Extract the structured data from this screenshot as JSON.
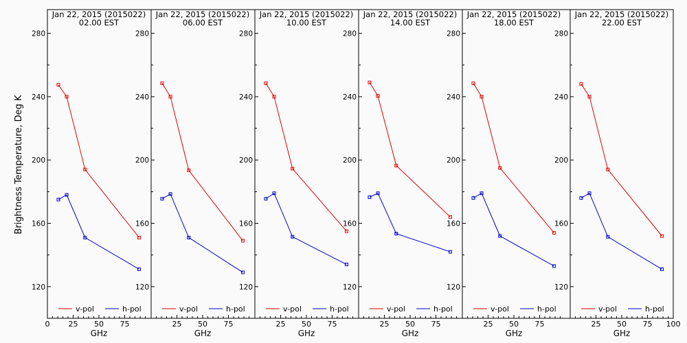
{
  "ylabel": "Brightness Temperature, Deg K",
  "xlabel": "GHz",
  "chart_data": [
    {
      "type": "line",
      "title": "Jan 22, 2015 (2015022)",
      "subtitle": "02.00 EST",
      "x": [
        10.65,
        18.7,
        36.5,
        89.0
      ],
      "series": [
        {
          "name": "v-pol",
          "color": "#e00000",
          "values": [
            247.5,
            240.0,
            194.0,
            151.0
          ]
        },
        {
          "name": "h-pol",
          "color": "#0000cc",
          "values": [
            175.0,
            178.0,
            151.0,
            131.0
          ]
        }
      ],
      "xlim": [
        0,
        100
      ],
      "ylim": [
        100,
        295
      ],
      "xticks": [
        0,
        25,
        50,
        75
      ],
      "xtick_labels": [
        "0",
        "25",
        "50",
        "75"
      ],
      "yticks": [
        120,
        160,
        200,
        240,
        280
      ],
      "ytick_labels": [
        "120",
        "160",
        "200",
        "240",
        "280"
      ],
      "legend": "bottom"
    },
    {
      "type": "line",
      "title": "Jan 22, 2015 (2015022)",
      "subtitle": "06.00 EST",
      "x": [
        10.65,
        18.7,
        36.5,
        89.0
      ],
      "series": [
        {
          "name": "v-pol",
          "color": "#e00000",
          "values": [
            248.5,
            240.0,
            193.5,
            149.0
          ]
        },
        {
          "name": "h-pol",
          "color": "#0000cc",
          "values": [
            175.5,
            178.5,
            151.0,
            129.0
          ]
        }
      ],
      "xlim": [
        0,
        100
      ],
      "ylim": [
        100,
        295
      ],
      "xticks": [
        0,
        25,
        50,
        75
      ],
      "xtick_labels": [
        "",
        "25",
        "50",
        "75"
      ],
      "yticks": [
        120,
        160,
        200,
        240,
        280
      ],
      "ytick_labels": [
        "120",
        "160",
        "200",
        "240",
        "280"
      ],
      "legend": "bottom"
    },
    {
      "type": "line",
      "title": "Jan 22, 2015 (2015022)",
      "subtitle": "10.00 EST",
      "x": [
        10.65,
        18.7,
        36.5,
        89.0
      ],
      "series": [
        {
          "name": "v-pol",
          "color": "#e00000",
          "values": [
            248.5,
            240.0,
            194.5,
            155.0
          ]
        },
        {
          "name": "h-pol",
          "color": "#0000cc",
          "values": [
            175.5,
            179.0,
            151.5,
            134.0
          ]
        }
      ],
      "xlim": [
        0,
        100
      ],
      "ylim": [
        100,
        295
      ],
      "xticks": [
        0,
        25,
        50,
        75
      ],
      "xtick_labels": [
        "",
        "25",
        "50",
        "75"
      ],
      "yticks": [
        120,
        160,
        200,
        240,
        280
      ],
      "ytick_labels": [
        "120",
        "160",
        "200",
        "240",
        "280"
      ],
      "legend": "bottom"
    },
    {
      "type": "line",
      "title": "Jan 22, 2015 (2015022)",
      "subtitle": "14.00 EST",
      "x": [
        10.65,
        18.7,
        36.5,
        89.0
      ],
      "series": [
        {
          "name": "v-pol",
          "color": "#e00000",
          "values": [
            249.0,
            240.5,
            196.5,
            164.0
          ]
        },
        {
          "name": "h-pol",
          "color": "#0000cc",
          "values": [
            176.5,
            179.0,
            153.5,
            142.0
          ]
        }
      ],
      "xlim": [
        0,
        100
      ],
      "ylim": [
        100,
        295
      ],
      "xticks": [
        0,
        25,
        50,
        75
      ],
      "xtick_labels": [
        "",
        "25",
        "50",
        "75"
      ],
      "yticks": [
        120,
        160,
        200,
        240,
        280
      ],
      "ytick_labels": [
        "120",
        "160",
        "200",
        "240",
        "280"
      ],
      "legend": "bottom"
    },
    {
      "type": "line",
      "title": "Jan 22, 2015 (2015022)",
      "subtitle": "18.00 EST",
      "x": [
        10.65,
        18.7,
        36.5,
        89.0
      ],
      "series": [
        {
          "name": "v-pol",
          "color": "#e00000",
          "values": [
            248.5,
            240.0,
            195.0,
            154.0
          ]
        },
        {
          "name": "h-pol",
          "color": "#0000cc",
          "values": [
            176.0,
            179.0,
            152.0,
            133.0
          ]
        }
      ],
      "xlim": [
        0,
        100
      ],
      "ylim": [
        100,
        295
      ],
      "xticks": [
        0,
        25,
        50,
        75
      ],
      "xtick_labels": [
        "",
        "25",
        "50",
        "75"
      ],
      "yticks": [
        120,
        160,
        200,
        240,
        280
      ],
      "ytick_labels": [
        "120",
        "160",
        "200",
        "240",
        "280"
      ],
      "legend": "bottom"
    },
    {
      "type": "line",
      "title": "Jan 22, 2015 (2015022)",
      "subtitle": "22.00 EST",
      "x": [
        10.65,
        18.7,
        36.5,
        89.0
      ],
      "series": [
        {
          "name": "v-pol",
          "color": "#e00000",
          "values": [
            248.0,
            240.0,
            194.0,
            152.0
          ]
        },
        {
          "name": "h-pol",
          "color": "#0000cc",
          "values": [
            176.0,
            179.0,
            151.5,
            131.0
          ]
        }
      ],
      "xlim": [
        0,
        100
      ],
      "ylim": [
        100,
        295
      ],
      "xticks": [
        0,
        25,
        50,
        75,
        100
      ],
      "xtick_labels": [
        "",
        "25",
        "50",
        "75",
        "100"
      ],
      "yticks": [
        120,
        160,
        200,
        240,
        280
      ],
      "ytick_labels": [
        "120",
        "160",
        "200",
        "240",
        "280"
      ],
      "legend": "bottom"
    }
  ]
}
